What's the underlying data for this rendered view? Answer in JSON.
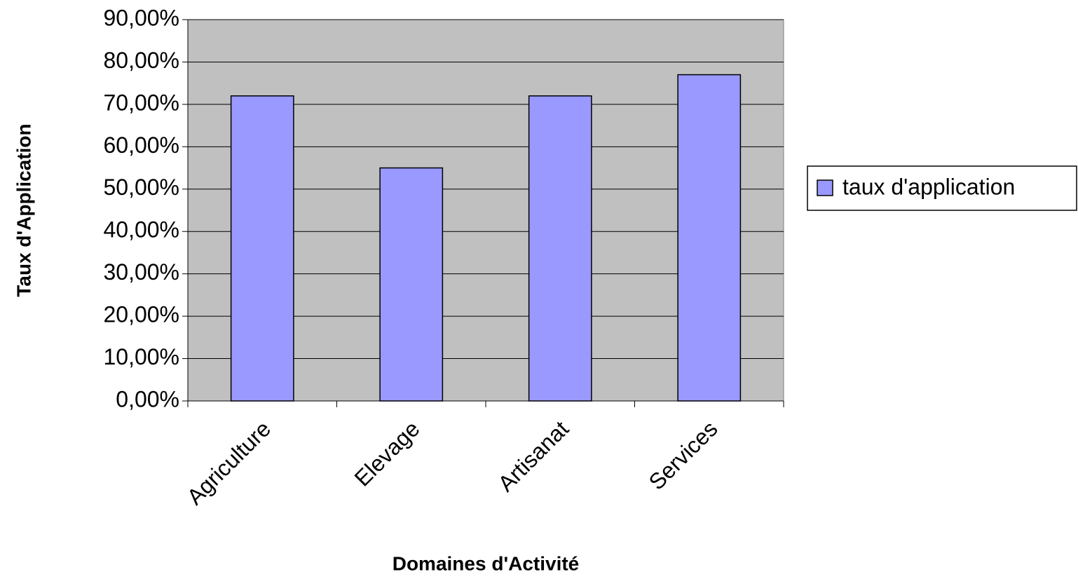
{
  "chart_data": {
    "type": "bar",
    "xlabel": "Domaines d'Activité",
    "ylabel": "Taux d'Application",
    "categories": [
      "Agriculture",
      "Elevage",
      "Artisanat",
      "Services"
    ],
    "series": [
      {
        "name": "taux d'application",
        "color": "#9999ff",
        "values": [
          72,
          55,
          72,
          77
        ]
      }
    ],
    "ylim": [
      0,
      90
    ],
    "yticks": [
      {
        "value": 0,
        "label": "0,00%"
      },
      {
        "value": 10,
        "label": "10,00%"
      },
      {
        "value": 20,
        "label": "20,00%"
      },
      {
        "value": 30,
        "label": "30,00%"
      },
      {
        "value": 40,
        "label": "40,00%"
      },
      {
        "value": 50,
        "label": "50,00%"
      },
      {
        "value": 60,
        "label": "60,00%"
      },
      {
        "value": 70,
        "label": "70,00%"
      },
      {
        "value": 80,
        "label": "80,00%"
      },
      {
        "value": 90,
        "label": "90,00%"
      }
    ],
    "grid": true,
    "legend": "right"
  }
}
